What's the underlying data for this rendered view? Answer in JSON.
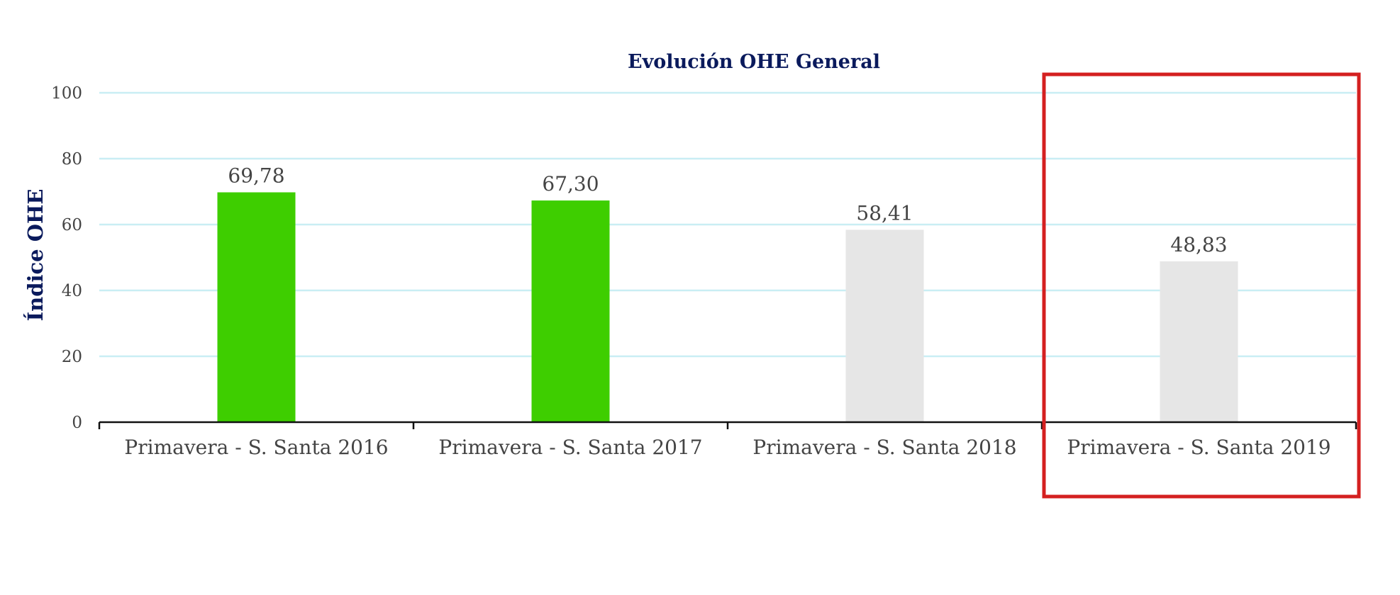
{
  "chart_data": {
    "type": "bar",
    "title": "Evolución OHE General",
    "ylabel": "Índice OHE",
    "xlabel": "",
    "categories": [
      "Primavera - S. Santa 2016",
      "Primavera - S. Santa 2017",
      "Primavera - S. Santa 2018",
      "Primavera - S. Santa 2019"
    ],
    "values": [
      69.78,
      67.3,
      58.41,
      48.83
    ],
    "value_labels": [
      "69,78",
      "67,30",
      "58,41",
      "48,83"
    ],
    "bar_colors": [
      "#3ECE00",
      "#3ECE00",
      "#E6E6E6",
      "#E6E6E6"
    ],
    "ylim": [
      0,
      100
    ],
    "yticks": [
      0,
      20,
      40,
      60,
      80,
      100
    ],
    "ytick_labels": [
      "0",
      "20",
      "40",
      "60",
      "80",
      "100"
    ],
    "grid": true,
    "highlight_category": "Primavera - S. Santa 2019"
  },
  "colors": {
    "title": "#0A1A5C",
    "ylabel": "#0A1A5C",
    "gridline": "#C9EEF4",
    "axis": "#111111",
    "highlight_box": "#D42020"
  }
}
